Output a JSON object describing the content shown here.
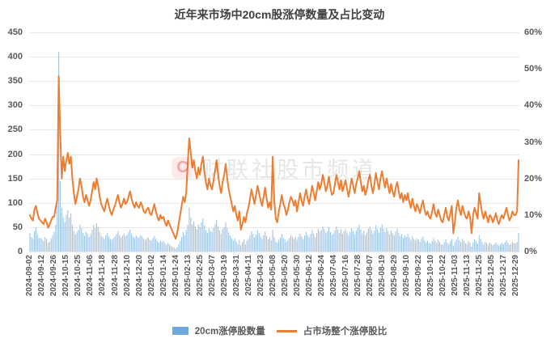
{
  "title": "近年来市场中20cm股涨停数量及占比变动",
  "watermark": {
    "logo_letter": "C",
    "text": "财联社股市频道"
  },
  "legend": {
    "bar_label": "20cm涨停股数量",
    "line_label": "占市场整个涨停股比"
  },
  "colors": {
    "bar": "#9dc3e6",
    "bar_legend": "#6fa8dc",
    "line": "#ed7d31",
    "grid": "#e8e8e8",
    "text": "#595959",
    "title": "#404040"
  },
  "chart_data": {
    "type": "bar+line",
    "title": "近年来市场中20cm股涨停数量及占比变动",
    "left_axis": {
      "min": 0,
      "max": 450,
      "ticks": [
        "450",
        "400",
        "350",
        "300",
        "250",
        "200",
        "150",
        "100",
        "50",
        "0"
      ]
    },
    "right_axis": {
      "min": 0,
      "max": 60,
      "unit": "%",
      "ticks": [
        "60%",
        "50%",
        "40%",
        "30%",
        "20%",
        "10%",
        "0%"
      ]
    },
    "grid": "horizontal",
    "legend_position": "bottom",
    "x_tick_every": 8,
    "x_tick_labels": [
      "2024-09-02",
      "2024-09-12",
      "2024-09-26",
      "2024-10-15",
      "2024-10-25",
      "2024-11-06",
      "2024-11-18",
      "2024-11-28",
      "2024-12-10",
      "2024-12-20",
      "2025-01-02",
      "2025-01-14",
      "2025-01-24",
      "2025-02-13",
      "2025-02-25",
      "2025-03-07",
      "2025-03-19",
      "2025-03-31",
      "2025-04-11",
      "2025-04-23",
      "2025-05-08",
      "2025-05-20",
      "2025-05-30",
      "2025-06-12",
      "2025-06-24",
      "2025-07-04",
      "2025-07-16",
      "2025-07-28",
      "2025-08-07",
      "2025-08-19",
      "2025-08-29",
      "2025-09-10",
      "2025-09-22",
      "2025-10-10",
      "2025-10-22",
      "2025-11-03",
      "2025-11-13",
      "2025-11-25",
      "2025-12-05",
      "2025-12-17",
      "2025-12-29"
    ],
    "series": [
      {
        "name": "20cm涨停股数量",
        "type": "bar",
        "axis": "left",
        "values": [
          38,
          30,
          26,
          42,
          50,
          35,
          28,
          28,
          25,
          22,
          30,
          26,
          18,
          20,
          27,
          33,
          40,
          55,
          140,
          410,
          145,
          90,
          70,
          60,
          75,
          85,
          70,
          78,
          55,
          42,
          35,
          40,
          45,
          55,
          48,
          38,
          33,
          40,
          36,
          30,
          36,
          45,
          55,
          48,
          58,
          50,
          40,
          32,
          30,
          26,
          33,
          38,
          31,
          26,
          24,
          28,
          31,
          36,
          42,
          34,
          29,
          32,
          37,
          32,
          34,
          40,
          45,
          37,
          31,
          28,
          33,
          30,
          29,
          34,
          31,
          26,
          24,
          27,
          29,
          24,
          23,
          27,
          32,
          26,
          21,
          18,
          23,
          20,
          21,
          17,
          14,
          18,
          15,
          12,
          10,
          8,
          6,
          9,
          15,
          22,
          30,
          40,
          34,
          44,
          55,
          90,
          70,
          56,
          62,
          52,
          46,
          56,
          50,
          60,
          68,
          54,
          44,
          38,
          48,
          42,
          40,
          48,
          56,
          65,
          52,
          43,
          36,
          46,
          50,
          60,
          48,
          39,
          33,
          27,
          22,
          27,
          20,
          15,
          24,
          13,
          19,
          25,
          15,
          22,
          26,
          33,
          42,
          36,
          29,
          35,
          44,
          38,
          31,
          26,
          33,
          41,
          32,
          25,
          29,
          23,
          45,
          30,
          20,
          18,
          24,
          29,
          36,
          28,
          25,
          20,
          23,
          28,
          33,
          30,
          26,
          30,
          24,
          30,
          37,
          31,
          26,
          33,
          40,
          33,
          29,
          36,
          44,
          37,
          30,
          38,
          47,
          41,
          44,
          52,
          46,
          38,
          42,
          50,
          40,
          34,
          37,
          44,
          52,
          45,
          38,
          46,
          37,
          42,
          46,
          39,
          33,
          40,
          48,
          42,
          35,
          43,
          48,
          55,
          45,
          37,
          42,
          34,
          39,
          47,
          52,
          44,
          37,
          43,
          54,
          46,
          39,
          49,
          56,
          47,
          40,
          48,
          42,
          35,
          43,
          37,
          33,
          41,
          47,
          38,
          31,
          36,
          28,
          34,
          30,
          36,
          29,
          24,
          31,
          26,
          22,
          27,
          25,
          20,
          26,
          31,
          23,
          19,
          22,
          17,
          16,
          21,
          27,
          22,
          18,
          24,
          20,
          15,
          14,
          19,
          25,
          18,
          15,
          21,
          26,
          12,
          19,
          24,
          30,
          23,
          19,
          26,
          22,
          17,
          16,
          21,
          18,
          10,
          19,
          25,
          21,
          16,
          34,
          26,
          19,
          15,
          20,
          17,
          13,
          18,
          16,
          13,
          15,
          19,
          14,
          12,
          15,
          18,
          15,
          19,
          23,
          18,
          14,
          16,
          20,
          17,
          17,
          19,
          38
        ]
      },
      {
        "name": "占市场整个涨停股比",
        "type": "line",
        "axis": "right",
        "values": [
          10,
          9,
          8.5,
          11.5,
          12.5,
          10.5,
          9,
          8.5,
          8,
          7.5,
          9,
          8,
          6.5,
          7.5,
          8.5,
          9.5,
          9.5,
          12,
          14,
          48,
          32,
          20,
          26,
          22,
          25,
          27,
          24,
          26,
          20,
          16,
          13,
          15,
          17,
          20,
          18,
          15,
          13.5,
          15.5,
          14,
          12.5,
          14,
          16.5,
          19,
          17,
          20,
          18,
          15,
          13,
          12,
          11,
          13,
          14.5,
          12.5,
          11,
          10,
          11.5,
          12.5,
          14,
          15.5,
          13.5,
          12,
          13,
          14.5,
          13,
          13.5,
          15,
          16.5,
          14.5,
          13,
          12,
          13.5,
          12.5,
          12,
          13.5,
          12.5,
          11,
          10.5,
          11.5,
          12,
          10.5,
          10,
          11.5,
          13,
          11,
          9.5,
          8.5,
          10,
          9,
          9.5,
          8,
          7,
          8.5,
          7.5,
          6.5,
          5.5,
          4.5,
          3.5,
          5,
          7.5,
          10,
          12.5,
          15,
          13.5,
          16,
          24,
          31,
          27,
          23,
          25,
          22,
          20,
          23,
          21,
          24,
          26,
          22,
          19,
          17,
          20,
          18,
          17,
          19.5,
          22,
          25,
          21,
          18,
          16,
          19,
          21,
          24,
          20,
          17,
          15,
          13,
          11,
          12.5,
          10,
          8.5,
          11,
          6,
          7.5,
          9.5,
          8,
          10.5,
          12,
          14.5,
          17,
          15,
          13,
          15.5,
          18,
          16,
          14,
          12.5,
          15,
          17.5,
          14.5,
          12,
          13.5,
          11.5,
          26,
          14,
          9,
          8,
          11,
          13,
          15.5,
          13,
          12,
          10,
          11.5,
          13.5,
          15,
          14,
          12.5,
          14,
          11,
          13.5,
          16,
          14,
          12.5,
          15,
          17,
          14.5,
          13,
          15.5,
          18,
          16,
          14,
          16.5,
          19,
          17,
          18.5,
          21,
          19,
          16.5,
          18,
          20.5,
          17.5,
          15.5,
          16,
          18.5,
          21,
          19,
          17,
          19.5,
          16.5,
          18,
          19.5,
          17,
          15,
          17.5,
          20,
          18,
          16,
          18.5,
          20,
          22,
          19,
          16.5,
          18,
          15.5,
          17,
          19.5,
          21,
          18,
          16,
          18.5,
          21.5,
          19,
          17,
          20,
          22,
          19.5,
          17.5,
          20,
          18,
          16,
          18.5,
          16.5,
          15,
          17.5,
          19,
          16.5,
          14.5,
          16,
          13.5,
          15.5,
          14,
          16,
          13.5,
          12,
          14.5,
          12.5,
          11,
          13,
          12,
          10.5,
          12.5,
          14,
          11.5,
          10,
          11,
          9.5,
          9,
          11,
          13,
          10.5,
          9.5,
          11.5,
          10,
          8.5,
          8,
          10,
          12,
          9.5,
          8.5,
          10.5,
          12.5,
          5,
          8,
          12,
          14,
          11.5,
          10,
          12.5,
          11,
          9.5,
          9,
          11,
          9.5,
          5,
          10,
          12,
          10.5,
          9,
          16,
          13,
          10.5,
          9,
          11,
          9.5,
          8,
          10,
          9.5,
          8,
          9,
          10.5,
          8.5,
          7.5,
          9,
          10,
          9,
          10.5,
          12,
          10,
          8.5,
          9.5,
          11,
          10,
          10,
          11,
          25
        ]
      }
    ]
  }
}
